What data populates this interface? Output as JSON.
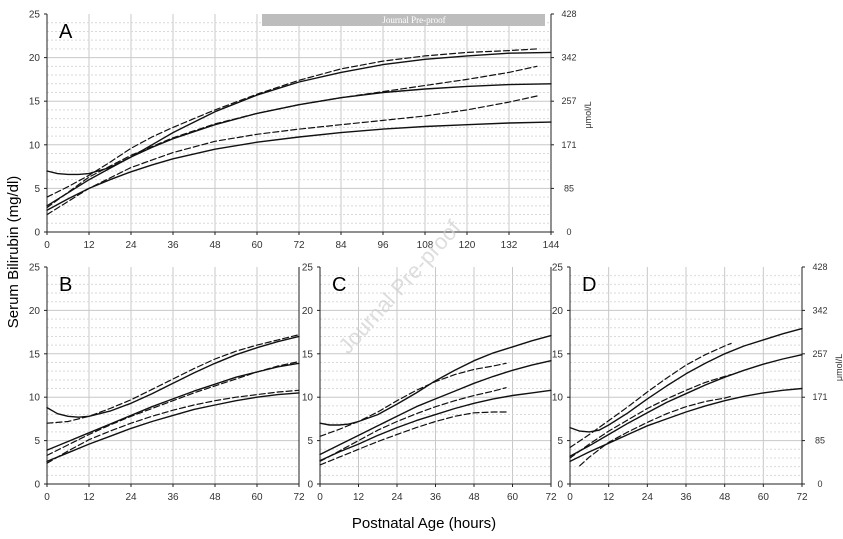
{
  "banner": {
    "text": "Journal Pre-proof"
  },
  "watermark": {
    "text": "Journal Pre-proof"
  },
  "figure": {
    "y_title": "Serum Bilirubin (mg/dl)",
    "x_title": "Postnatal Age (hours)"
  },
  "chart_data": [
    {
      "id": "A",
      "type": "line",
      "panel_label": "A",
      "xlim": [
        0,
        144
      ],
      "ylim": [
        0,
        25
      ],
      "xticks": [
        0,
        12,
        24,
        36,
        48,
        60,
        72,
        84,
        96,
        108,
        120,
        132,
        144
      ],
      "yticks": [
        0,
        5,
        10,
        15,
        20,
        25
      ],
      "right_axis": {
        "label": "μmol/L",
        "ticks": [
          "0",
          "85",
          "171",
          "257",
          "342",
          "428"
        ]
      },
      "grid": true,
      "series": [
        {
          "style": "solid",
          "x": [
            0,
            3,
            6,
            9,
            12,
            18,
            24,
            30,
            36,
            42,
            48,
            60,
            72,
            84,
            96,
            108,
            120,
            132,
            144
          ],
          "y": [
            7.0,
            6.7,
            6.6,
            6.6,
            6.7,
            7.4,
            8.6,
            10.0,
            11.4,
            12.6,
            13.8,
            15.7,
            17.2,
            18.3,
            19.2,
            19.8,
            20.2,
            20.5,
            20.6
          ]
        },
        {
          "style": "solid",
          "x": [
            0,
            6,
            12,
            18,
            24,
            30,
            36,
            48,
            60,
            72,
            84,
            96,
            108,
            120,
            132,
            144
          ],
          "y": [
            3.0,
            4.5,
            6.0,
            7.3,
            8.6,
            9.7,
            10.7,
            12.3,
            13.6,
            14.6,
            15.4,
            16.0,
            16.4,
            16.7,
            16.9,
            17.0
          ]
        },
        {
          "style": "solid",
          "x": [
            0,
            6,
            12,
            18,
            24,
            30,
            36,
            48,
            60,
            72,
            84,
            96,
            108,
            120,
            132,
            144
          ],
          "y": [
            2.5,
            3.8,
            5.0,
            6.0,
            6.9,
            7.7,
            8.4,
            9.5,
            10.3,
            10.9,
            11.4,
            11.8,
            12.1,
            12.3,
            12.5,
            12.6
          ]
        },
        {
          "style": "dashed",
          "x": [
            0,
            6,
            12,
            18,
            24,
            30,
            36,
            42,
            48,
            60,
            72,
            84,
            96,
            108,
            120,
            132,
            140
          ],
          "y": [
            4.0,
            5.2,
            6.5,
            8.0,
            9.6,
            10.9,
            12.0,
            13.0,
            14.0,
            15.8,
            17.4,
            18.7,
            19.6,
            20.2,
            20.6,
            20.8,
            21.0
          ]
        },
        {
          "style": "dashed",
          "x": [
            0,
            12,
            24,
            36,
            48,
            60,
            72,
            84,
            96,
            108,
            120,
            132,
            140
          ],
          "y": [
            2.8,
            6.3,
            8.8,
            10.8,
            12.4,
            13.6,
            14.6,
            15.4,
            16.1,
            16.8,
            17.5,
            18.3,
            19.0
          ]
        },
        {
          "style": "dashed",
          "x": [
            0,
            12,
            24,
            36,
            48,
            60,
            72,
            84,
            96,
            108,
            120,
            132,
            140
          ],
          "y": [
            2.0,
            5.0,
            7.4,
            9.1,
            10.4,
            11.2,
            11.8,
            12.3,
            12.8,
            13.3,
            14.0,
            14.9,
            15.6
          ]
        }
      ]
    },
    {
      "id": "B",
      "type": "line",
      "panel_label": "B",
      "xlim": [
        0,
        72
      ],
      "ylim": [
        0,
        25
      ],
      "xticks": [
        0,
        12,
        24,
        36,
        48,
        60,
        72
      ],
      "yticks": [
        0,
        5,
        10,
        15,
        20,
        25
      ],
      "grid": true,
      "series": [
        {
          "style": "solid",
          "x": [
            0,
            3,
            6,
            9,
            12,
            18,
            24,
            30,
            36,
            42,
            48,
            54,
            60,
            66,
            72
          ],
          "y": [
            8.8,
            8.1,
            7.8,
            7.7,
            7.8,
            8.4,
            9.3,
            10.4,
            11.6,
            12.8,
            13.9,
            14.9,
            15.7,
            16.4,
            17.0
          ]
        },
        {
          "style": "solid",
          "x": [
            0,
            6,
            12,
            18,
            24,
            30,
            36,
            42,
            48,
            54,
            60,
            66,
            72
          ],
          "y": [
            3.9,
            4.9,
            5.9,
            6.9,
            7.9,
            8.9,
            9.8,
            10.7,
            11.5,
            12.3,
            12.9,
            13.5,
            13.9
          ]
        },
        {
          "style": "solid",
          "x": [
            0,
            6,
            12,
            18,
            24,
            30,
            36,
            42,
            48,
            54,
            60,
            66,
            72
          ],
          "y": [
            2.6,
            3.6,
            4.6,
            5.5,
            6.4,
            7.2,
            7.9,
            8.6,
            9.1,
            9.6,
            10.0,
            10.3,
            10.5
          ]
        },
        {
          "style": "dashed",
          "x": [
            0,
            6,
            12,
            18,
            24,
            30,
            36,
            42,
            48,
            54,
            60,
            66,
            72
          ],
          "y": [
            7.0,
            7.2,
            7.8,
            8.7,
            9.7,
            10.9,
            12.1,
            13.3,
            14.4,
            15.3,
            16.0,
            16.6,
            17.2
          ]
        },
        {
          "style": "dashed",
          "x": [
            0,
            6,
            12,
            18,
            24,
            30,
            36,
            42,
            48,
            54,
            60,
            66,
            72
          ],
          "y": [
            3.3,
            4.5,
            5.7,
            6.8,
            7.8,
            8.7,
            9.6,
            10.5,
            11.3,
            12.1,
            12.9,
            13.6,
            14.1
          ]
        },
        {
          "style": "dashed",
          "x": [
            0,
            6,
            12,
            18,
            24,
            30,
            36,
            42,
            48,
            54,
            60,
            66,
            72
          ],
          "y": [
            2.4,
            3.8,
            5.1,
            6.1,
            7.0,
            7.8,
            8.5,
            9.1,
            9.6,
            10.0,
            10.3,
            10.6,
            10.8
          ]
        }
      ]
    },
    {
      "id": "C",
      "type": "line",
      "panel_label": "C",
      "xlim": [
        0,
        72
      ],
      "ylim": [
        0,
        25
      ],
      "xticks": [
        0,
        12,
        24,
        36,
        48,
        60,
        72
      ],
      "yticks": [
        0,
        5,
        10,
        15,
        20,
        25
      ],
      "grid": true,
      "series": [
        {
          "style": "solid",
          "x": [
            0,
            3,
            6,
            9,
            12,
            18,
            24,
            30,
            36,
            42,
            48,
            54,
            60,
            66,
            72
          ],
          "y": [
            7.0,
            6.8,
            6.8,
            6.9,
            7.2,
            8.0,
            9.2,
            10.5,
            11.9,
            13.1,
            14.2,
            15.1,
            15.8,
            16.5,
            17.1
          ]
        },
        {
          "style": "solid",
          "x": [
            0,
            6,
            12,
            18,
            24,
            30,
            36,
            42,
            48,
            54,
            60,
            66,
            72
          ],
          "y": [
            3.4,
            4.5,
            5.6,
            6.7,
            7.8,
            8.9,
            9.8,
            10.7,
            11.6,
            12.4,
            13.1,
            13.7,
            14.2
          ]
        },
        {
          "style": "solid",
          "x": [
            0,
            6,
            12,
            18,
            24,
            30,
            36,
            42,
            48,
            54,
            60,
            66,
            72
          ],
          "y": [
            2.7,
            3.7,
            4.6,
            5.6,
            6.5,
            7.3,
            8.0,
            8.7,
            9.3,
            9.8,
            10.2,
            10.5,
            10.8
          ]
        },
        {
          "style": "dashed",
          "x": [
            0,
            6,
            12,
            18,
            24,
            30,
            36,
            42,
            48,
            54,
            58
          ],
          "y": [
            5.5,
            6.3,
            7.2,
            8.3,
            9.6,
            10.8,
            11.8,
            12.6,
            13.2,
            13.6,
            13.9
          ]
        },
        {
          "style": "dashed",
          "x": [
            0,
            6,
            12,
            18,
            24,
            30,
            36,
            42,
            48,
            54,
            58
          ],
          "y": [
            2.6,
            3.8,
            5.0,
            6.2,
            7.2,
            8.1,
            8.9,
            9.6,
            10.2,
            10.7,
            11.1
          ]
        },
        {
          "style": "dashed",
          "x": [
            0,
            6,
            12,
            18,
            24,
            30,
            36,
            42,
            48,
            54,
            58
          ],
          "y": [
            2.2,
            3.1,
            4.0,
            4.9,
            5.7,
            6.5,
            7.2,
            7.8,
            8.2,
            8.3,
            8.3
          ]
        }
      ]
    },
    {
      "id": "D",
      "type": "line",
      "panel_label": "D",
      "xlim": [
        0,
        72
      ],
      "ylim": [
        0,
        25
      ],
      "xticks": [
        0,
        12,
        24,
        36,
        48,
        60,
        72
      ],
      "yticks": [
        0,
        5,
        10,
        15,
        20,
        25
      ],
      "right_axis": {
        "label": "μmol/L",
        "ticks": [
          "0",
          "85",
          "171",
          "257",
          "342",
          "428"
        ]
      },
      "grid": true,
      "series": [
        {
          "style": "solid",
          "x": [
            0,
            3,
            6,
            9,
            12,
            18,
            24,
            30,
            36,
            42,
            48,
            54,
            60,
            66,
            72
          ],
          "y": [
            6.5,
            6.1,
            6.0,
            6.2,
            6.8,
            8.2,
            9.8,
            11.3,
            12.7,
            13.9,
            15.0,
            15.9,
            16.6,
            17.3,
            17.9
          ]
        },
        {
          "style": "solid",
          "x": [
            0,
            6,
            12,
            18,
            24,
            30,
            36,
            42,
            48,
            54,
            60,
            66,
            72
          ],
          "y": [
            3.2,
            4.4,
            5.7,
            7.0,
            8.2,
            9.4,
            10.4,
            11.4,
            12.3,
            13.1,
            13.8,
            14.4,
            14.9
          ]
        },
        {
          "style": "solid",
          "x": [
            0,
            6,
            12,
            18,
            24,
            30,
            36,
            42,
            48,
            54,
            60,
            66,
            72
          ],
          "y": [
            2.6,
            3.7,
            4.7,
            5.7,
            6.7,
            7.5,
            8.3,
            9.0,
            9.6,
            10.1,
            10.5,
            10.8,
            11.0
          ]
        },
        {
          "style": "dashed",
          "x": [
            0,
            6,
            12,
            18,
            24,
            30,
            36,
            42,
            48,
            50
          ],
          "y": [
            4.2,
            5.7,
            7.3,
            8.9,
            10.6,
            12.2,
            13.7,
            14.9,
            15.9,
            16.2
          ]
        },
        {
          "style": "dashed",
          "x": [
            0,
            6,
            12,
            18,
            24,
            30,
            36,
            42,
            48,
            50
          ],
          "y": [
            3.0,
            4.6,
            6.1,
            7.4,
            8.7,
            9.8,
            10.8,
            11.7,
            12.4,
            12.6
          ]
        },
        {
          "style": "dashed",
          "x": [
            3,
            6,
            12,
            18,
            24,
            30,
            36,
            42,
            48,
            50
          ],
          "y": [
            2.1,
            3.1,
            4.8,
            6.0,
            7.1,
            8.1,
            8.9,
            9.5,
            9.9,
            10.1
          ]
        }
      ]
    }
  ]
}
